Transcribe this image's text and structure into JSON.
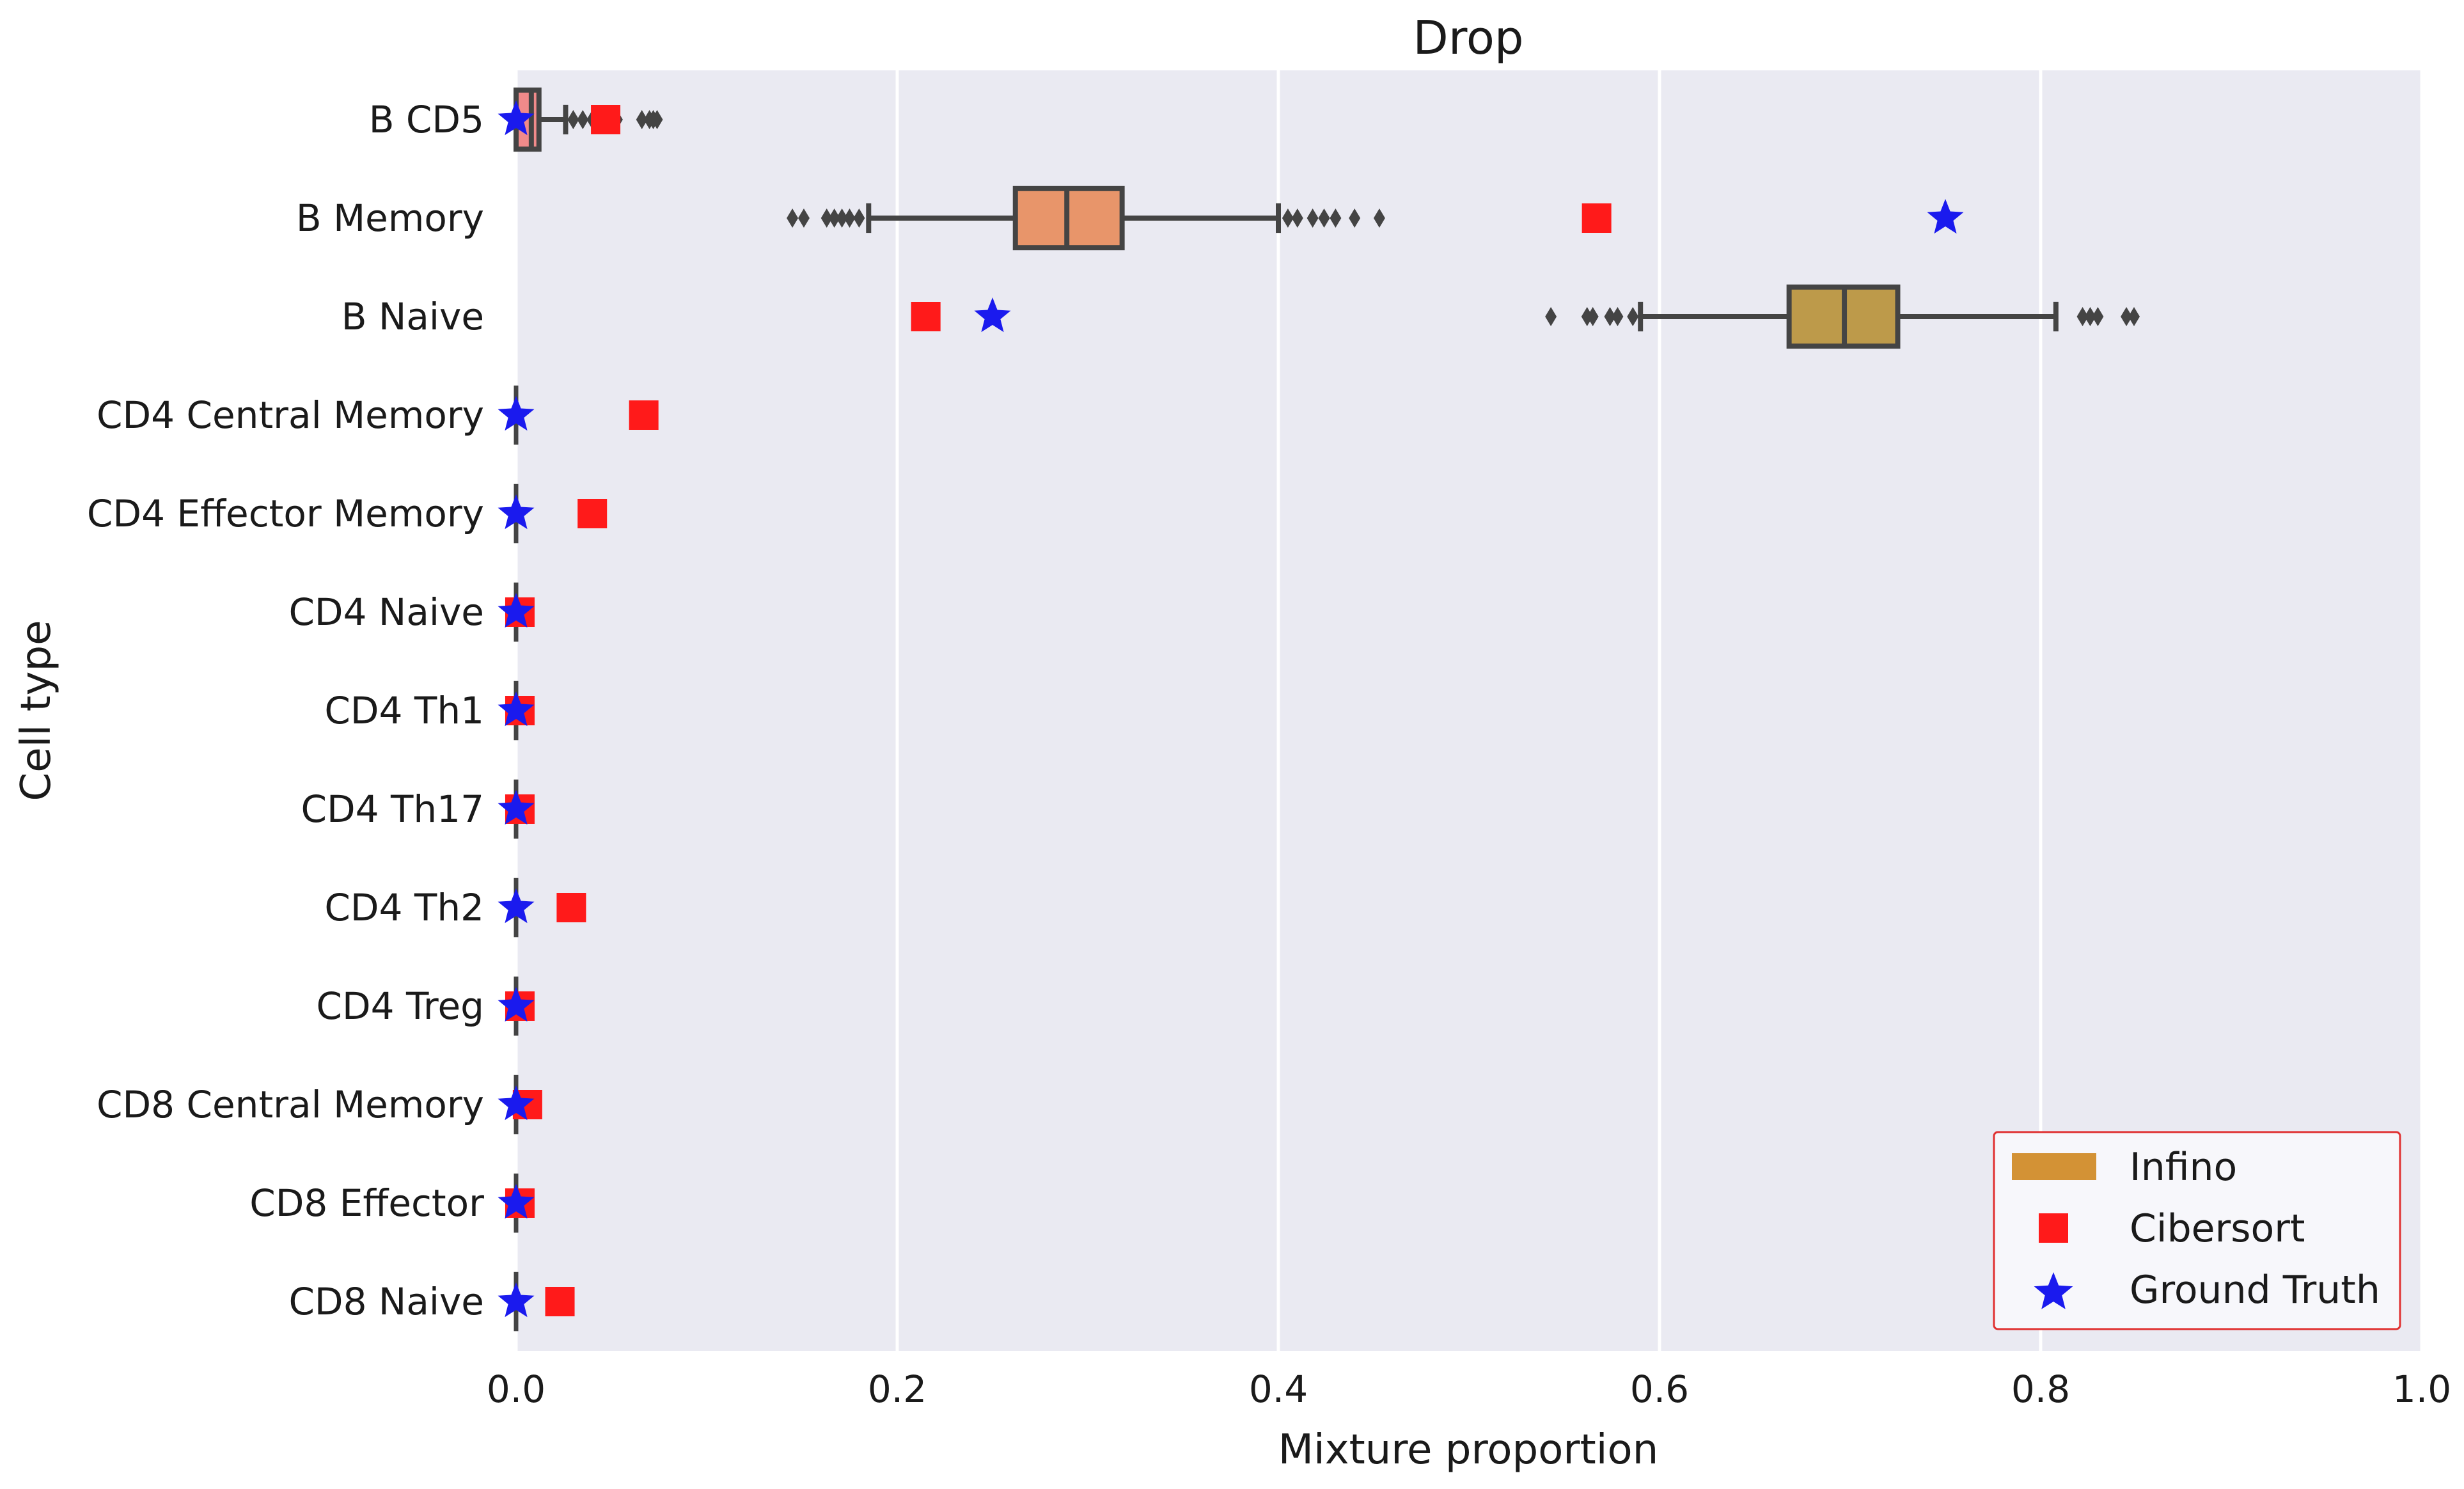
{
  "chart_data": {
    "type": "box",
    "title": "Drop",
    "xlabel": "Mixture proportion",
    "ylabel": "Cell type",
    "xlim": [
      0.0,
      1.0
    ],
    "xticks": [
      "0.0",
      "0.2",
      "0.4",
      "0.6",
      "0.8",
      "1.0"
    ],
    "xtick_values": [
      0.0,
      0.2,
      0.4,
      0.6,
      0.8,
      1.0
    ],
    "grid": true,
    "legend_position": "bottom-right",
    "colors": {
      "plot_background": "#eaeaf2",
      "grid": "#ffffff",
      "box_edge": "#444444",
      "cibersort": "#ff1a1a",
      "ground_truth": "#1a1aee",
      "legend_edge": "#e03030",
      "infino_legend": "#d39235"
    },
    "categories": [
      "B CD5",
      "B Memory",
      "B Naive",
      "CD4 Central Memory",
      "CD4 Effector Memory",
      "CD4 Naive",
      "CD4 Th1",
      "CD4 Th17",
      "CD4 Th2",
      "CD4 Treg",
      "CD8 Central Memory",
      "CD8 Effector",
      "CD8 Naive"
    ],
    "legend": [
      {
        "label": "Infino",
        "marker": "patch"
      },
      {
        "label": "Cibersort",
        "marker": "square"
      },
      {
        "label": "Ground Truth",
        "marker": "star"
      }
    ],
    "infino_boxes": [
      {
        "category": "B CD5",
        "q1": 0.0,
        "median": 0.008,
        "q3": 0.012,
        "whisker_low": 0.0,
        "whisker_high": 0.026,
        "fliers": [
          0.03,
          0.035,
          0.04,
          0.045,
          0.05,
          0.053,
          0.066,
          0.07,
          0.072,
          0.074
        ],
        "color": "#f08a8a"
      },
      {
        "category": "B Memory",
        "q1": 0.262,
        "median": 0.289,
        "q3": 0.318,
        "whisker_low": 0.185,
        "whisker_high": 0.4,
        "fliers": [
          0.145,
          0.151,
          0.163,
          0.167,
          0.171,
          0.175,
          0.18,
          0.405,
          0.41,
          0.418,
          0.424,
          0.43,
          0.44,
          0.453
        ],
        "color": "#e8956a"
      },
      {
        "category": "B Naive",
        "q1": 0.668,
        "median": 0.697,
        "q3": 0.725,
        "whisker_low": 0.59,
        "whisker_high": 0.808,
        "fliers": [
          0.543,
          0.562,
          0.565,
          0.574,
          0.578,
          0.586,
          0.822,
          0.826,
          0.83,
          0.845,
          0.849
        ],
        "color": "#bd9a4a"
      },
      {
        "category": "CD4 Central Memory",
        "q1": 0.0,
        "median": 0.0,
        "q3": 0.0,
        "whisker_low": 0.0,
        "whisker_high": 0.0,
        "fliers": [],
        "color": "#9fb04a"
      },
      {
        "category": "CD4 Effector Memory",
        "q1": 0.0,
        "median": 0.0,
        "q3": 0.0,
        "whisker_low": 0.0,
        "whisker_high": 0.0,
        "fliers": [],
        "color": "#6cb35a"
      },
      {
        "category": "CD4 Naive",
        "q1": 0.0,
        "median": 0.0,
        "q3": 0.0,
        "whisker_low": 0.0,
        "whisker_high": 0.0,
        "fliers": [],
        "color": "#52b38a"
      },
      {
        "category": "CD4 Th1",
        "q1": 0.0,
        "median": 0.0,
        "q3": 0.0,
        "whisker_low": 0.0,
        "whisker_high": 0.0,
        "fliers": [],
        "color": "#4fb0b0"
      },
      {
        "category": "CD4 Th17",
        "q1": 0.0,
        "median": 0.0,
        "q3": 0.0,
        "whisker_low": 0.0,
        "whisker_high": 0.0,
        "fliers": [],
        "color": "#55a8d0"
      },
      {
        "category": "CD4 Th2",
        "q1": 0.0,
        "median": 0.0,
        "q3": 0.0,
        "whisker_low": 0.0,
        "whisker_high": 0.0,
        "fliers": [],
        "color": "#7a9fe0"
      },
      {
        "category": "CD4 Treg",
        "q1": 0.0,
        "median": 0.0,
        "q3": 0.0,
        "whisker_low": 0.0,
        "whisker_high": 0.0,
        "fliers": [],
        "color": "#a38ee0"
      },
      {
        "category": "CD8 Central Memory",
        "q1": 0.0,
        "median": 0.0,
        "q3": 0.0,
        "whisker_low": 0.0,
        "whisker_high": 0.0,
        "fliers": [],
        "color": "#c884d8"
      },
      {
        "category": "CD8 Effector",
        "q1": 0.0,
        "median": 0.0,
        "q3": 0.0,
        "whisker_low": 0.0,
        "whisker_high": 0.0,
        "fliers": [],
        "color": "#e07ec0"
      },
      {
        "category": "CD8 Naive",
        "q1": 0.0,
        "median": 0.0,
        "q3": 0.0,
        "whisker_low": 0.0,
        "whisker_high": 0.0,
        "fliers": [],
        "color": "#e88aa0"
      }
    ],
    "cibersort": [
      0.047,
      0.567,
      0.215,
      0.067,
      0.04,
      0.002,
      0.002,
      0.002,
      0.029,
      0.002,
      0.006,
      0.002,
      0.023
    ],
    "ground_truth": [
      0.0,
      0.75,
      0.25,
      0.0,
      0.0,
      0.0,
      0.0,
      0.0,
      0.0,
      0.0,
      0.0,
      0.0,
      0.0
    ]
  }
}
